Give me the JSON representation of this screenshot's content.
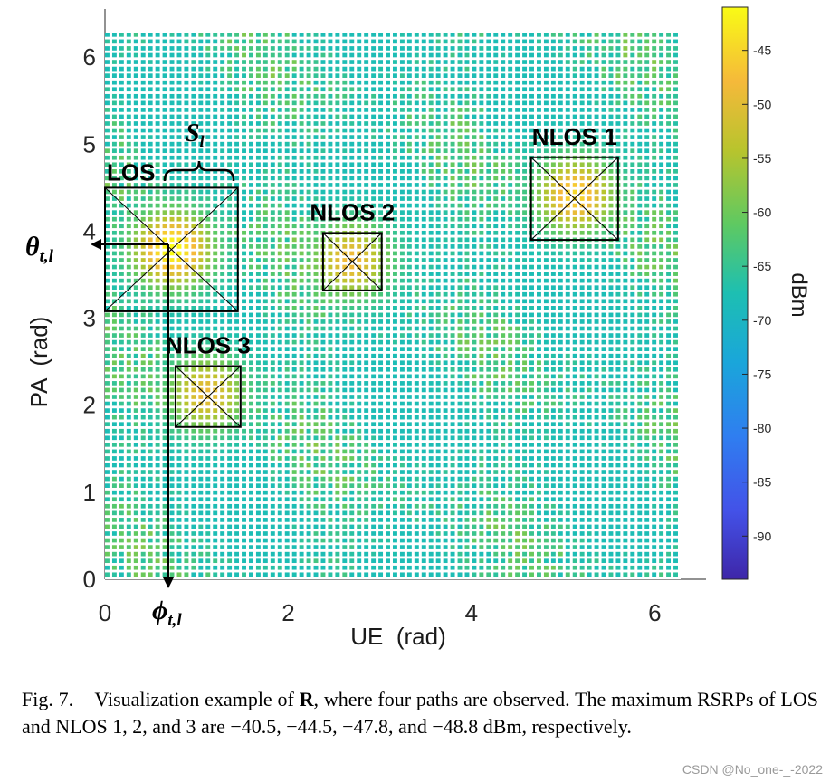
{
  "chart_data": {
    "type": "heatmap",
    "xlabel": "UE  (rad)",
    "ylabel": "PA  (rad)",
    "xlim": [
      0,
      6.2832
    ],
    "ylim": [
      0,
      6.2832
    ],
    "x_ticks": [
      "0",
      "2",
      "4",
      "6"
    ],
    "y_ticks": [
      "0",
      "1",
      "2",
      "3",
      "4",
      "5",
      "6"
    ],
    "colorbar": {
      "label": "dBm",
      "range": [
        -94,
        -41
      ],
      "ticks": [
        "-45",
        "-50",
        "-55",
        "-60",
        "-65",
        "-70",
        "-75",
        "-80",
        "-85",
        "-90"
      ]
    },
    "background_level_dbm": -68,
    "peaks": [
      {
        "label": "LOS",
        "x": 0.75,
        "y": 3.78,
        "max_dbm": -40.5,
        "box": {
          "x0": 0.0,
          "x1": 1.45,
          "y0": 3.08,
          "y1": 4.5
        }
      },
      {
        "label": "NLOS 1",
        "x": 5.15,
        "y": 4.4,
        "max_dbm": -44.5,
        "box": {
          "x0": 4.65,
          "x1": 5.6,
          "y0": 3.9,
          "y1": 4.85
        }
      },
      {
        "label": "NLOS 2",
        "x": 2.7,
        "y": 3.65,
        "max_dbm": -47.8,
        "box": {
          "x0": 2.38,
          "x1": 3.02,
          "y0": 3.32,
          "y1": 3.98
        }
      },
      {
        "label": "NLOS 3",
        "x": 1.12,
        "y": 2.12,
        "max_dbm": -48.8,
        "box": {
          "x0": 0.77,
          "x1": 1.48,
          "y0": 1.75,
          "y1": 2.45
        }
      }
    ],
    "annotations": {
      "s_label": "S",
      "s_subscript": "l",
      "theta_label": "θ",
      "theta_subscript": "t,l",
      "phi_label": "ϕ",
      "phi_subscript": "t,l"
    }
  },
  "caption": {
    "prefix": "Fig. 7.",
    "text_before_bold": "Visualization example of ",
    "bold": "R",
    "text_after_bold": ", where four paths are observed. The maximum RSRPs of LOS and NLOS 1, 2, and 3 are −40.5, −44.5, −47.8, and −48.8 dBm, respectively."
  },
  "watermark": "CSDN @No_one-_-2022"
}
